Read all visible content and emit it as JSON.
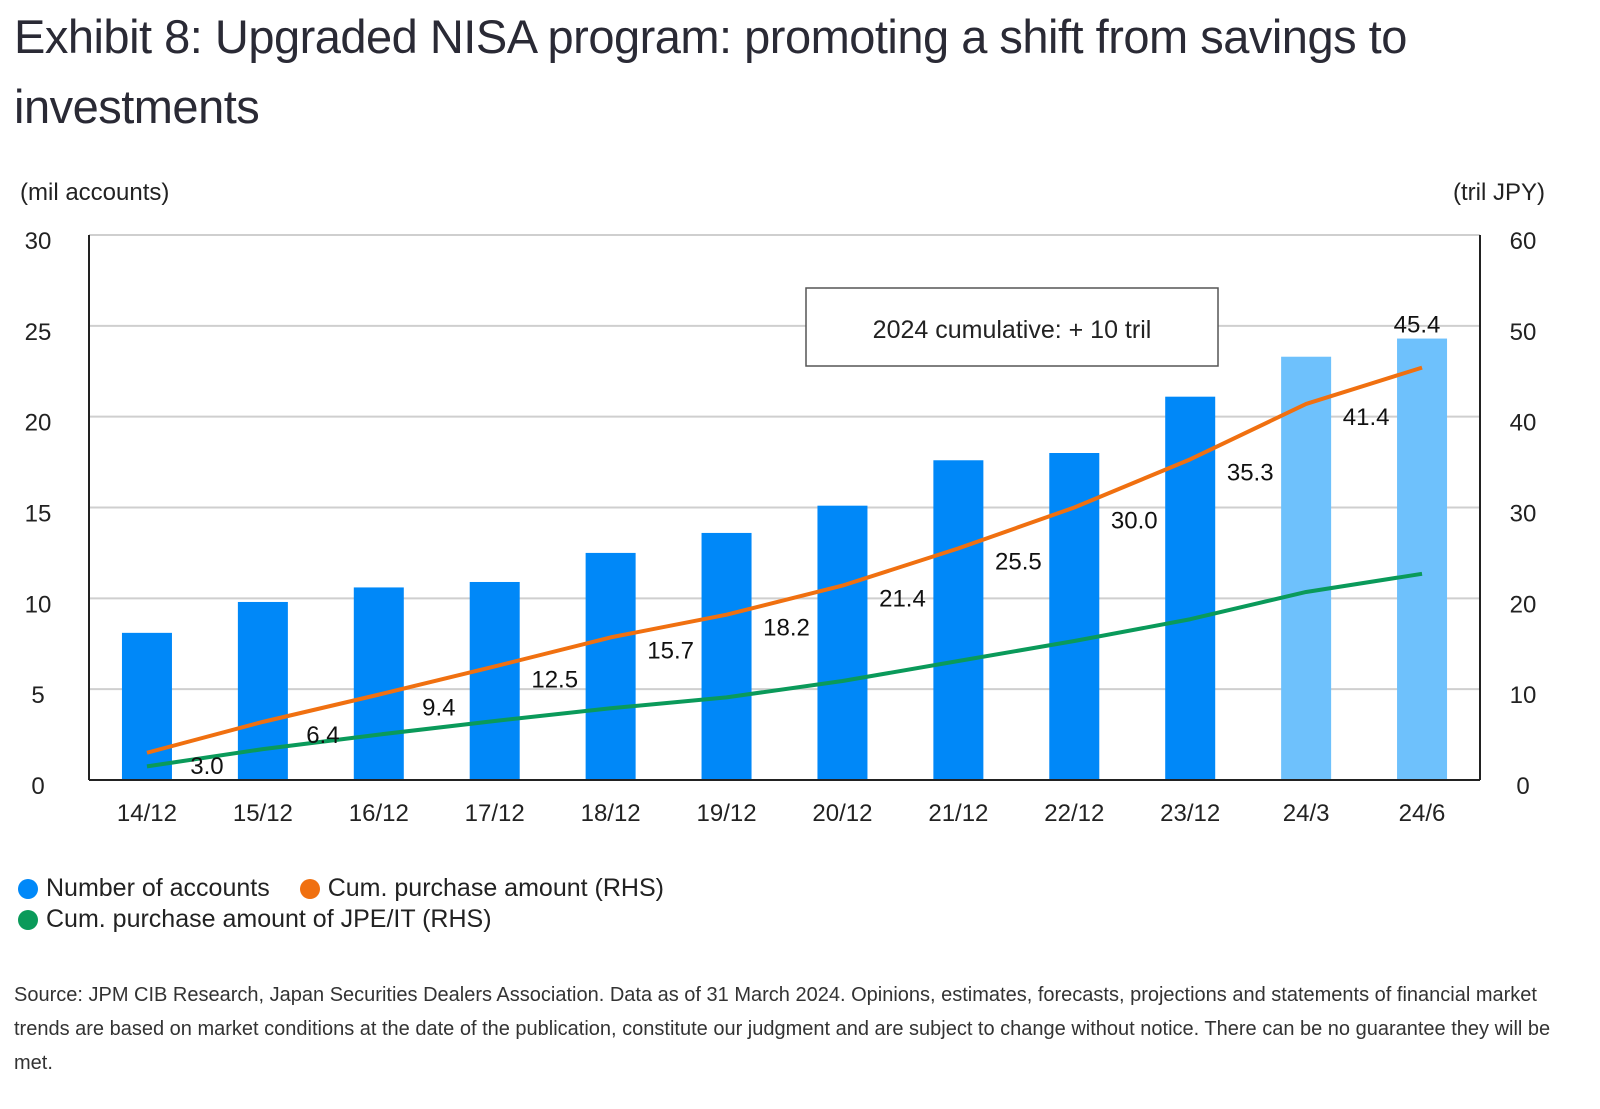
{
  "title": "Exhibit 8: Upgraded NISA program: promoting a shift from savings to investments",
  "source": "Source: JPM CIB Research, Japan Securities Dealers Association. Data as of 31 March 2024. Opinions, estimates, forecasts, projections and statements of financial market trends are based on market conditions at the date of the publication, constitute our judgment and are subject to change without notice. There can be no guarantee they will be met.",
  "chart_data": {
    "type": "bar+line",
    "categories": [
      "14/12",
      "15/12",
      "16/12",
      "17/12",
      "18/12",
      "19/12",
      "20/12",
      "21/12",
      "22/12",
      "23/12",
      "24/3",
      "24/6"
    ],
    "y_left_label": "(mil accounts)",
    "y_right_label": "(tril JPY)",
    "y_left_lim": [
      0,
      30
    ],
    "y_right_lim": [
      0,
      60
    ],
    "y_left_ticks": [
      "0",
      "5",
      "10",
      "15",
      "20",
      "25",
      "30"
    ],
    "y_right_ticks": [
      "0",
      "10",
      "20",
      "30",
      "40",
      "50",
      "60"
    ],
    "grid": true,
    "annotation": "2024 cumulative: + 10 tril",
    "series": [
      {
        "name": "Number of accounts",
        "type": "bar",
        "axis": "left",
        "color": "#0088f8",
        "highlight_color": "#6ec1fc",
        "highlight_from": "24/3",
        "values": [
          8.1,
          9.8,
          10.6,
          10.9,
          12.5,
          13.6,
          15.1,
          17.6,
          18.0,
          21.1,
          23.3,
          24.3
        ]
      },
      {
        "name": "Cum. purchase amount (RHS)",
        "type": "line",
        "axis": "right",
        "color": "#f07010",
        "labels": true,
        "values": [
          3.0,
          6.4,
          9.4,
          12.5,
          15.7,
          18.2,
          21.4,
          25.5,
          30.0,
          35.3,
          41.4,
          45.4
        ]
      },
      {
        "name": "Cum. purchase amount of JPE/IT (RHS)",
        "type": "line",
        "axis": "right",
        "color": "#0a9a5a",
        "values": [
          1.5,
          3.4,
          5.0,
          6.5,
          7.9,
          9.1,
          10.9,
          13.1,
          15.3,
          17.7,
          20.7,
          22.7
        ]
      }
    ],
    "legend_position": "bottom-left"
  }
}
